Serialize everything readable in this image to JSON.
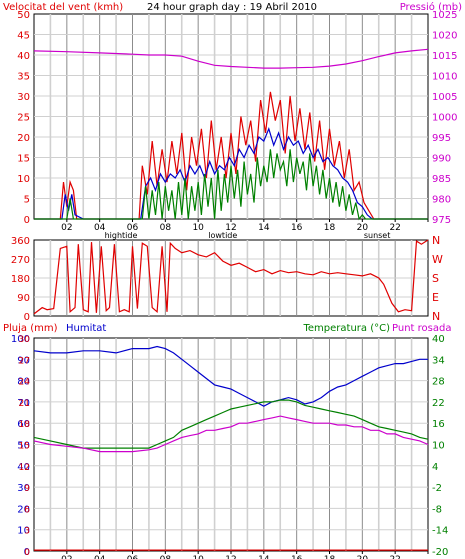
{
  "colors": {
    "red": "#e00000",
    "blue": "#0000cc",
    "green": "#008000",
    "magenta": "#cc00cc",
    "grid": "#d0d0d0",
    "gridDark": "#8c8c8c",
    "axisBg": "#ffffff"
  },
  "chart_data": [
    {
      "type": "line",
      "title": "24 hour graph day : 19 Abril 2010",
      "left_axis_label": "Velocitat del vent (kmh)",
      "right_axis_label": "Pressió (mb)",
      "x_ticks": [
        "02",
        "04",
        "06",
        "08",
        "10",
        "12",
        "14",
        "16",
        "18",
        "20",
        "22",
        ""
      ],
      "x_range": [
        0,
        24
      ],
      "left_range": [
        0,
        50
      ],
      "left_ticks": [
        "0",
        "5",
        "10",
        "15",
        "20",
        "25",
        "30",
        "35",
        "40",
        "45",
        "50"
      ],
      "right_range": [
        975,
        1025
      ],
      "right_ticks": [
        "975",
        "980",
        "985",
        "990",
        "995",
        "1000",
        "1005",
        "1010",
        "1015",
        "1020",
        "1025"
      ],
      "x_annotations": [
        {
          "x": 5.3,
          "label": "hightide"
        },
        {
          "x": 11.5,
          "label": "lowtide"
        },
        {
          "x": 20.9,
          "label": "sunset"
        }
      ],
      "series": [
        {
          "axis": "right",
          "color": "magenta",
          "x": [
            0,
            2,
            4,
            6,
            7,
            8,
            9,
            10,
            11,
            12,
            13,
            14,
            15,
            16,
            17,
            18,
            19,
            20,
            21,
            22,
            23,
            24
          ],
          "y": [
            1016,
            1015.8,
            1015.5,
            1015.2,
            1015,
            1015,
            1014.7,
            1013.5,
            1012.5,
            1012.2,
            1012,
            1011.8,
            1011.8,
            1011.9,
            1012,
            1012.3,
            1012.8,
            1013.6,
            1014.6,
            1015.5,
            1016,
            1016.4
          ]
        },
        {
          "axis": "left",
          "color": "red",
          "x": [
            0,
            1.6,
            1.8,
            2.0,
            2.2,
            2.4,
            2.6,
            3,
            6.4,
            6.6,
            6.9,
            7.2,
            7.5,
            7.8,
            8.1,
            8.4,
            8.7,
            9.0,
            9.3,
            9.6,
            9.9,
            10.2,
            10.5,
            10.8,
            11.1,
            11.4,
            11.7,
            12.0,
            12.3,
            12.6,
            12.9,
            13.2,
            13.5,
            13.8,
            14.1,
            14.4,
            14.7,
            15.0,
            15.3,
            15.6,
            15.9,
            16.2,
            16.5,
            16.8,
            17.1,
            17.4,
            17.7,
            18.0,
            18.3,
            18.6,
            18.9,
            19.2,
            19.5,
            19.8,
            20.1,
            20.4,
            20.7,
            21,
            24
          ],
          "y": [
            0,
            0,
            9,
            3,
            9,
            7,
            0,
            0,
            0,
            13,
            6,
            19,
            8,
            17,
            9,
            19,
            11,
            21,
            7,
            20,
            13,
            22,
            10,
            24,
            12,
            20,
            10,
            21,
            11,
            25,
            18,
            24,
            14,
            29,
            21,
            31,
            24,
            29,
            16,
            30,
            19,
            27,
            17,
            26,
            14,
            24,
            12,
            22,
            13,
            19,
            10,
            17,
            7,
            9,
            4,
            2,
            0,
            0,
            0
          ]
        },
        {
          "axis": "left",
          "color": "blue",
          "x": [
            0,
            1.7,
            1.9,
            2.1,
            2.3,
            2.5,
            3,
            6.5,
            6.8,
            7.1,
            7.4,
            7.7,
            8.0,
            8.3,
            8.6,
            8.9,
            9.2,
            9.5,
            9.8,
            10.1,
            10.4,
            10.7,
            11.0,
            11.3,
            11.6,
            11.9,
            12.2,
            12.5,
            12.8,
            13.1,
            13.4,
            13.7,
            14.0,
            14.3,
            14.6,
            14.9,
            15.2,
            15.5,
            15.8,
            16.1,
            16.4,
            16.7,
            17.0,
            17.3,
            17.6,
            17.9,
            18.2,
            18.5,
            18.8,
            19.1,
            19.4,
            19.7,
            20.0,
            20.3,
            20.6,
            21,
            24
          ],
          "y": [
            0,
            0,
            6,
            2,
            6,
            1,
            0,
            0,
            8,
            10,
            7,
            11,
            9,
            11,
            10,
            12,
            9,
            13,
            11,
            13,
            10,
            14,
            11,
            13,
            12,
            15,
            13,
            17,
            15,
            18,
            16,
            20,
            19,
            22,
            18,
            21,
            17,
            20,
            18,
            19,
            16,
            18,
            15,
            17,
            14,
            15,
            13,
            12,
            10,
            9,
            7,
            4,
            3,
            1,
            0,
            0,
            0
          ]
        },
        {
          "axis": "left",
          "color": "green",
          "x": [
            0,
            2.0,
            2.2,
            2.4,
            3,
            6.6,
            6.8,
            7.0,
            7.2,
            7.4,
            7.6,
            7.8,
            8.0,
            8.2,
            8.4,
            8.6,
            8.8,
            9.0,
            9.2,
            9.4,
            9.6,
            9.8,
            10.0,
            10.2,
            10.4,
            10.6,
            10.8,
            11.0,
            11.2,
            11.4,
            11.6,
            11.8,
            12.0,
            12.2,
            12.4,
            12.6,
            12.8,
            13.0,
            13.2,
            13.4,
            13.6,
            13.8,
            14.0,
            14.2,
            14.4,
            14.6,
            14.8,
            15.0,
            15.2,
            15.4,
            15.6,
            15.8,
            16.0,
            16.2,
            16.4,
            16.6,
            16.8,
            17.0,
            17.2,
            17.4,
            17.6,
            17.8,
            18.0,
            18.2,
            18.4,
            18.6,
            18.8,
            19.0,
            19.2,
            19.4,
            19.6,
            19.8,
            20.0,
            20.2,
            21,
            24
          ],
          "y": [
            0,
            0,
            5,
            0,
            0,
            0,
            8,
            0,
            7,
            1,
            9,
            0,
            8,
            2,
            7,
            0,
            9,
            1,
            10,
            0,
            8,
            2,
            9,
            1,
            11,
            3,
            10,
            0,
            12,
            2,
            11,
            4,
            13,
            5,
            12,
            3,
            14,
            6,
            11,
            4,
            15,
            8,
            13,
            9,
            17,
            10,
            16,
            12,
            14,
            8,
            17,
            9,
            15,
            11,
            14,
            7,
            16,
            8,
            13,
            6,
            12,
            5,
            10,
            4,
            9,
            3,
            8,
            2,
            6,
            1,
            4,
            0,
            1,
            0,
            0,
            0
          ]
        }
      ]
    },
    {
      "type": "line",
      "title": "",
      "left_axis_label": "",
      "right_axis_label": "",
      "left_range": [
        0,
        360
      ],
      "left_ticks": [
        "0",
        "90",
        "180",
        "270",
        "360"
      ],
      "right_ticks": [
        "N",
        "E",
        "S",
        "W",
        "N"
      ],
      "series": [
        {
          "axis": "left",
          "color": "red",
          "x": [
            0,
            0.5,
            0.8,
            1.2,
            1.6,
            2.0,
            2.2,
            2.5,
            2.7,
            3.0,
            3.3,
            3.5,
            3.8,
            4.1,
            4.4,
            4.6,
            4.9,
            5.2,
            5.5,
            5.8,
            6.0,
            6.3,
            6.6,
            6.9,
            7.2,
            7.5,
            7.8,
            8.1,
            8.3,
            8.6,
            9.0,
            9.5,
            10,
            10.5,
            11,
            11.5,
            12,
            12.5,
            13,
            13.5,
            14,
            14.5,
            15,
            15.5,
            16,
            16.5,
            17,
            17.5,
            18,
            18.5,
            19,
            19.5,
            20,
            20.5,
            21,
            21.3,
            21.8,
            22.2,
            22.6,
            23.0,
            23.3,
            23.6,
            24
          ],
          "y": [
            10,
            40,
            30,
            35,
            320,
            330,
            20,
            40,
            340,
            30,
            20,
            350,
            15,
            330,
            25,
            40,
            340,
            20,
            30,
            20,
            330,
            35,
            345,
            330,
            40,
            20,
            330,
            20,
            345,
            320,
            300,
            310,
            290,
            280,
            300,
            260,
            240,
            250,
            230,
            210,
            220,
            200,
            215,
            205,
            210,
            200,
            195,
            210,
            200,
            205,
            200,
            195,
            190,
            200,
            180,
            150,
            60,
            20,
            30,
            25,
            355,
            340,
            360
          ]
        }
      ]
    },
    {
      "type": "line",
      "title": "",
      "left_axis_label": "Pluja (mm)",
      "left2_axis_label": "Humitat",
      "right_axis_label": "Temperatura (°C)",
      "right2_axis_label": "Punt rosada",
      "x_ticks": [
        "02",
        "04",
        "06",
        "08",
        "10",
        "12",
        "14",
        "16",
        "18",
        "20",
        "22",
        ""
      ],
      "x_annotations": [
        {
          "x": 5.3,
          "label": "hightide"
        },
        {
          "x": 11.5,
          "label": "lowtide"
        },
        {
          "x": 20.9,
          "label": "sunset"
        }
      ],
      "left_range": [
        0,
        100
      ],
      "left_ticks": [
        "0",
        "10",
        "20",
        "30",
        "40",
        "50",
        "60",
        "70",
        "80",
        "90",
        "100"
      ],
      "left2_range": [
        0,
        30
      ],
      "left2_ticks": [
        "0",
        "3",
        "6",
        "9",
        "12",
        "15",
        "18",
        "21",
        "24",
        "27",
        "30"
      ],
      "right_range": [
        -20,
        40
      ],
      "right_ticks": [
        "-20",
        "-14",
        "-8",
        "-2",
        "4",
        "10",
        "16",
        "22",
        "28",
        "34",
        "40"
      ],
      "series": [
        {
          "axis": "left",
          "color": "blue",
          "x": [
            0,
            1,
            2,
            3,
            4,
            5,
            6,
            7,
            7.5,
            8,
            8.5,
            9,
            9.5,
            10,
            10.5,
            11,
            11.5,
            12,
            12.5,
            13,
            13.5,
            14,
            14.5,
            15,
            15.5,
            16,
            16.5,
            17,
            17.5,
            18,
            18.5,
            19,
            19.5,
            20,
            20.5,
            21,
            21.5,
            22,
            22.5,
            23,
            23.5,
            24
          ],
          "y": [
            94,
            93,
            93,
            94,
            94,
            93,
            95,
            95,
            96,
            95,
            93,
            90,
            87,
            84,
            81,
            78,
            77,
            76,
            74,
            72,
            70,
            68,
            70,
            71,
            72,
            71,
            69,
            70,
            72,
            75,
            77,
            78,
            80,
            82,
            84,
            86,
            87,
            88,
            88,
            89,
            90,
            90
          ]
        },
        {
          "axis": "right",
          "color": "green",
          "x": [
            0,
            1,
            2,
            3,
            4,
            5,
            6,
            7,
            7.5,
            8,
            8.5,
            9,
            9.5,
            10,
            10.5,
            11,
            11.5,
            12,
            12.5,
            13,
            13.5,
            14,
            14.5,
            15,
            15.5,
            16,
            16.5,
            17,
            17.5,
            18,
            18.5,
            19,
            19.5,
            20,
            20.5,
            21,
            21.5,
            22,
            22.5,
            23,
            23.5,
            24
          ],
          "y": [
            12,
            11,
            10,
            9,
            9,
            9,
            9,
            9,
            10,
            11,
            12,
            14,
            15,
            16,
            17,
            18,
            19,
            20,
            20.5,
            21,
            21.5,
            22,
            22,
            22.5,
            22.5,
            22,
            21,
            20.5,
            20,
            19.5,
            19,
            18.5,
            18,
            17,
            16,
            15,
            14.5,
            14,
            13.5,
            13,
            12,
            11.5
          ]
        },
        {
          "axis": "right",
          "color": "magenta",
          "x": [
            0,
            1,
            2,
            3,
            4,
            5,
            6,
            7,
            7.5,
            8,
            8.5,
            9,
            9.5,
            10,
            10.5,
            11,
            11.5,
            12,
            12.5,
            13,
            13.5,
            14,
            14.5,
            15,
            15.5,
            16,
            16.5,
            17,
            17.5,
            18,
            18.5,
            19,
            19.5,
            20,
            20.5,
            21,
            21.5,
            22,
            22.5,
            23,
            23.5,
            24
          ],
          "y": [
            11,
            10,
            9.5,
            9,
            8,
            8,
            8,
            8.5,
            9,
            10,
            11,
            12,
            12.5,
            13,
            14,
            14,
            14.5,
            15,
            16,
            16,
            16.5,
            17,
            17.5,
            18,
            17.5,
            17,
            16.5,
            16,
            16,
            16,
            15.5,
            15.5,
            15,
            15,
            14,
            14,
            13,
            13,
            12,
            11.5,
            11,
            10
          ]
        },
        {
          "axis": "left",
          "color": "red",
          "x": [
            0,
            24
          ],
          "y": [
            0.4,
            0.4
          ]
        }
      ]
    }
  ]
}
